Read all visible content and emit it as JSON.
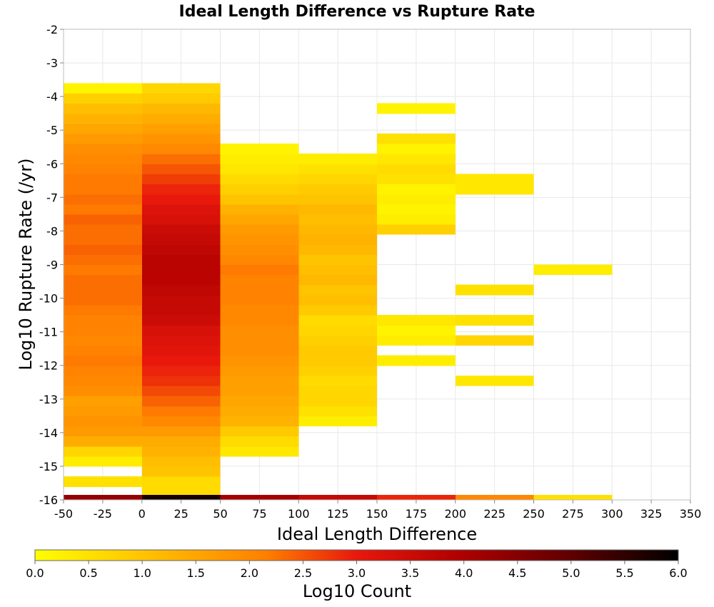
{
  "chart_data": {
    "type": "heatmap",
    "title": "Ideal Length Difference vs Rupture Rate",
    "xlabel": "Ideal Length Difference",
    "ylabel": "Log10 Rupture Rate (/yr)",
    "colorbar_label": "Log10 Count",
    "xlim": [
      -50,
      350
    ],
    "ylim": [
      -16,
      -2
    ],
    "x_ticks": [
      "-50",
      "-25",
      "0",
      "25",
      "50",
      "75",
      "100",
      "125",
      "150",
      "175",
      "200",
      "225",
      "250",
      "275",
      "300",
      "325",
      "350"
    ],
    "y_ticks": [
      "-2",
      "-3",
      "-4",
      "-5",
      "-6",
      "-7",
      "-8",
      "-9",
      "-10",
      "-11",
      "-12",
      "-13",
      "-14",
      "-15",
      "-16"
    ],
    "colorbar_ticks": [
      "0.0",
      "0.5",
      "1.0",
      "1.5",
      "2.0",
      "2.5",
      "3.0",
      "3.5",
      "4.0",
      "4.5",
      "5.0",
      "5.5",
      "6.0"
    ],
    "color_range": [
      0,
      6
    ],
    "grid": true,
    "y_bin_size": 0.3,
    "x_bin_size": 50,
    "columns": [
      {
        "x0": -50,
        "y_start": -15.6,
        "values": [
          0.5,
          null,
          0.3,
          0.7,
          1.4,
          1.7,
          1.8,
          1.7,
          1.6,
          1.9,
          2.0,
          2.1,
          2.2,
          2.1,
          2.0,
          2.1,
          2.1,
          2.2,
          2.3,
          2.3,
          2.3,
          2.2,
          2.3,
          2.4,
          2.3,
          2.3,
          2.4,
          2.2,
          2.3,
          2.2,
          2.2,
          2.1,
          2.0,
          1.9,
          1.7,
          1.5,
          1.3,
          1.1,
          0.8,
          0.2
        ]
      },
      {
        "x0": 0,
        "y_start": -15.9,
        "values": [
          0.6,
          0.6,
          1.0,
          1.1,
          1.3,
          1.4,
          1.7,
          2.0,
          2.2,
          2.4,
          2.6,
          2.8,
          2.9,
          3.0,
          3.1,
          3.2,
          3.3,
          3.5,
          3.6,
          3.6,
          3.7,
          3.8,
          3.8,
          3.8,
          3.7,
          3.6,
          3.5,
          3.3,
          3.2,
          3.0,
          2.9,
          2.7,
          2.5,
          2.3,
          2.0,
          1.8,
          1.6,
          1.4,
          1.2,
          0.9,
          0.7
        ]
      },
      {
        "x0": 50,
        "y_start": -14.7,
        "values": [
          0.4,
          0.6,
          0.9,
          1.3,
          1.4,
          1.5,
          1.6,
          1.6,
          1.7,
          1.8,
          1.9,
          1.9,
          1.9,
          2.0,
          2.0,
          2.1,
          2.1,
          2.1,
          2.2,
          2.0,
          1.9,
          1.8,
          1.7,
          1.5,
          1.3,
          1.0,
          0.8,
          0.6,
          0.4,
          0.3,
          0.2
        ]
      },
      {
        "x0": 100,
        "y_start": -13.8,
        "values": [
          0.3,
          0.5,
          0.7,
          0.7,
          0.6,
          0.8,
          0.9,
          0.9,
          0.8,
          0.7,
          0.6,
          0.9,
          1.1,
          1.0,
          1.2,
          1.1,
          1.0,
          1.2,
          1.3,
          1.2,
          1.1,
          1.2,
          1.0,
          0.9,
          0.7,
          0.5,
          0.3
        ]
      },
      {
        "x0": 150,
        "y_start": -12.0,
        "values": [
          0.3,
          null,
          0.3,
          0.2,
          0.4,
          null,
          null,
          null,
          null,
          null,
          null,
          null,
          null,
          0.8,
          0.3,
          0.2,
          0.3,
          0.2,
          0.5,
          0.6,
          0.4,
          0.2,
          0.5,
          null,
          null,
          0.2
        ]
      },
      {
        "x0": 200,
        "y_start": -12.6,
        "values": [
          0.4,
          null,
          null,
          null,
          0.7,
          null,
          0.5,
          null,
          null,
          0.5,
          null,
          null,
          null,
          null,
          null,
          null,
          null,
          null,
          null,
          0.4,
          0.4
        ]
      },
      {
        "x0": 250,
        "y_start": -9.3,
        "values": [
          0.3
        ]
      }
    ],
    "bottom_row": {
      "y0": -16.0,
      "y1": -15.85,
      "values": [
        4.3,
        5.8,
        4.1,
        3.6,
        2.9,
        2.0,
        0.5
      ]
    }
  }
}
